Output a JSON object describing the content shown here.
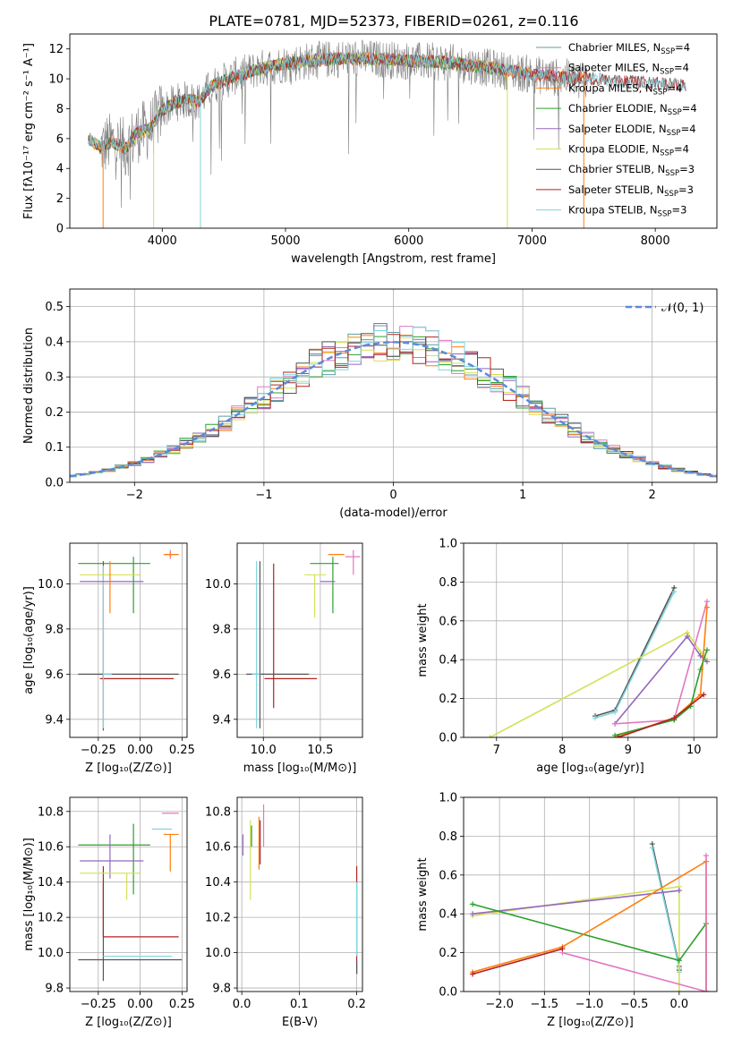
{
  "figure": {
    "title": "PLATE=0781, MJD=52373, FIBERID=0261, z=0.116"
  },
  "chart_data": [
    {
      "panel": "spectrum",
      "type": "line",
      "xlabel": "wavelength [Angstrom, rest frame]",
      "ylabel": "Flux [fλ10⁻¹⁷ erg cm⁻² s⁻¹ A⁻¹]",
      "xlim": [
        3250,
        8500
      ],
      "ylim": [
        0,
        13
      ],
      "xticks": [
        4000,
        5000,
        6000,
        7000,
        8000
      ],
      "yticks": [
        0,
        2,
        4,
        6,
        8,
        10,
        12
      ],
      "grid": false,
      "legend_position": "right",
      "continuum": [
        [
          3400,
          6.0
        ],
        [
          3500,
          5.4
        ],
        [
          3600,
          5.8
        ],
        [
          3700,
          5.3
        ],
        [
          3800,
          6.4
        ],
        [
          3900,
          6.6
        ],
        [
          4000,
          7.9
        ],
        [
          4100,
          8.4
        ],
        [
          4200,
          8.6
        ],
        [
          4300,
          8.5
        ],
        [
          4400,
          9.5
        ],
        [
          4600,
          10.2
        ],
        [
          4800,
          10.7
        ],
        [
          5000,
          11.0
        ],
        [
          5200,
          11.2
        ],
        [
          5500,
          11.4
        ],
        [
          5800,
          11.3
        ],
        [
          6000,
          11.2
        ],
        [
          6300,
          11.1
        ],
        [
          6600,
          10.8
        ],
        [
          6900,
          10.4
        ],
        [
          7200,
          10.1
        ],
        [
          7500,
          10.0
        ],
        [
          7800,
          9.8
        ],
        [
          8000,
          9.7
        ],
        [
          8200,
          9.6
        ]
      ],
      "series": [
        {
          "name": "Chabrier MILES, N",
          "sub": "SSP",
          "suffix": "=4",
          "color": "#5f9ea0"
        },
        {
          "name": "Salpeter MILES, N",
          "sub": "SSP",
          "suffix": "=4",
          "color": "#e377c2"
        },
        {
          "name": "Kroupa MILES, N",
          "sub": "SSP",
          "suffix": "=4",
          "color": "#ff7f0e"
        },
        {
          "name": "Chabrier ELODIE, N",
          "sub": "SSP",
          "suffix": "=4",
          "color": "#2ca02c"
        },
        {
          "name": "Salpeter ELODIE, N",
          "sub": "SSP",
          "suffix": "=4",
          "color": "#9467bd"
        },
        {
          "name": "Kroupa ELODIE, N",
          "sub": "SSP",
          "suffix": "=4",
          "color": "#d4e157"
        },
        {
          "name": "Chabrier STELIB, N",
          "sub": "SSP",
          "suffix": "=3",
          "color": "#555555"
        },
        {
          "name": "Salpeter STELIB, N",
          "sub": "SSP",
          "suffix": "=3",
          "color": "#b22222"
        },
        {
          "name": "Kroupa STELIB, N",
          "sub": "SSP",
          "suffix": "=3",
          "color": "#7fd4e0"
        }
      ]
    },
    {
      "panel": "residuals",
      "type": "line",
      "xlabel": "(data-model)/error",
      "ylabel": "Normed distribution",
      "xlim": [
        -2.5,
        2.5
      ],
      "ylim": [
        0,
        0.55
      ],
      "xticks": [
        -2,
        -1,
        0,
        1,
        2
      ],
      "xtick_labels": [
        "−2",
        "−1",
        "0",
        "1",
        "2"
      ],
      "yticks": [
        0.0,
        0.1,
        0.2,
        0.3,
        0.4,
        0.5
      ],
      "grid": true,
      "legend_position": "top-right",
      "gaussian_label": "𝒩(0, 1)",
      "bin_width": 0.1,
      "hist_colors": [
        "#5f9ea0",
        "#e377c2",
        "#ff7f0e",
        "#2ca02c",
        "#9467bd",
        "#d4e157",
        "#555555",
        "#b22222",
        "#7fd4e0"
      ]
    },
    {
      "panel": "age-vs-Z",
      "type": "scatter",
      "xlabel": "Z [log₁₀(Z/Z⊙)]",
      "ylabel": "age  [log₁₀(age/yr)]",
      "xlim": [
        -0.42,
        0.28
      ],
      "ylim": [
        9.32,
        10.18
      ],
      "xticks": [
        -0.25,
        0.0,
        0.25
      ],
      "xtick_labels": [
        "−0.25",
        "0.00",
        "0.25"
      ],
      "yticks": [
        9.4,
        9.6,
        9.8,
        10.0
      ],
      "grid": true,
      "points": [
        {
          "x": -0.22,
          "y": 9.6,
          "xerr": [
            0.15,
            0.45
          ],
          "yerr": [
            0.25,
            0.5
          ],
          "color": "#555555"
        },
        {
          "x": -0.22,
          "y": 9.58,
          "xerr": [
            0.02,
            0.42
          ],
          "yerr": [
            0.02,
            0.02
          ],
          "color": "#b22222"
        },
        {
          "x": -0.22,
          "y": 9.6,
          "xerr": [
            0.0,
            0.05
          ],
          "yerr": [
            0.24,
            0.48
          ],
          "color": "#7fd4e0"
        },
        {
          "x": -0.04,
          "y": 10.09,
          "xerr": [
            0.33,
            0.1
          ],
          "yerr": [
            0.22,
            0.03
          ],
          "color": "#2ca02c"
        },
        {
          "x": -0.12,
          "y": 10.01,
          "xerr": [
            0.24,
            0.14
          ],
          "yerr": [
            0.0,
            0.0
          ],
          "color": "#9467bd"
        },
        {
          "x": -0.08,
          "y": 10.04,
          "xerr": [
            0.28,
            0.08
          ],
          "yerr": [
            0.0,
            0.0
          ],
          "color": "#d4e157"
        },
        {
          "x": 0.18,
          "y": 10.13,
          "xerr": [
            0.03,
            0.05
          ],
          "yerr": [
            0.02,
            0.02
          ],
          "color": "#e377c2"
        },
        {
          "x": 0.18,
          "y": 10.13,
          "xerr": [
            0.04,
            0.05
          ],
          "yerr": [
            0.01,
            0.01
          ],
          "color": "#ff7f0e"
        },
        {
          "x": -0.18,
          "y": 10.03,
          "xerr": [
            0.0,
            0.0
          ],
          "yerr": [
            0.16,
            0.07
          ],
          "color": "#ff7f0e"
        }
      ]
    },
    {
      "panel": "age-vs-mass",
      "type": "scatter",
      "xlabel": "mass [log₁₀(M/M⊙)]",
      "xlim": [
        9.77,
        10.87
      ],
      "ylim": [
        9.32,
        10.18
      ],
      "xticks": [
        10.0,
        10.5
      ],
      "xtick_labels": [
        "10.0",
        "10.5"
      ],
      "yticks": [
        9.4,
        9.6,
        9.8,
        10.0
      ],
      "grid": true,
      "points": [
        {
          "x": 9.97,
          "y": 9.6,
          "xerr": [
            0.12,
            0.43
          ],
          "yerr": [
            0.24,
            0.5
          ],
          "color": "#555555"
        },
        {
          "x": 10.09,
          "y": 9.58,
          "xerr": [
            0.08,
            0.38
          ],
          "yerr": [
            0.13,
            0.51
          ],
          "color": "#b22222"
        },
        {
          "x": 9.94,
          "y": 9.6,
          "xerr": [
            0.04,
            0.03
          ],
          "yerr": [
            0.24,
            0.5
          ],
          "color": "#7fd4e0"
        },
        {
          "x": 10.61,
          "y": 10.09,
          "xerr": [
            0.2,
            0.05
          ],
          "yerr": [
            0.22,
            0.03
          ],
          "color": "#2ca02c"
        },
        {
          "x": 10.55,
          "y": 10.01,
          "xerr": [
            0.05,
            0.08
          ],
          "yerr": [
            0.0,
            0.0
          ],
          "color": "#9467bd"
        },
        {
          "x": 10.45,
          "y": 10.04,
          "xerr": [
            0.09,
            0.1
          ],
          "yerr": [
            0.19,
            0.0
          ],
          "color": "#d4e157"
        },
        {
          "x": 10.79,
          "y": 10.12,
          "xerr": [
            0.07,
            0.06
          ],
          "yerr": [
            0.08,
            0.03
          ],
          "color": "#e377c2"
        },
        {
          "x": 10.67,
          "y": 10.13,
          "xerr": [
            0.1,
            0.04
          ],
          "yerr": [
            0.0,
            0.0
          ],
          "color": "#ff7f0e"
        }
      ]
    },
    {
      "panel": "weight-vs-age",
      "type": "line",
      "xlabel": "age  [log₁₀(age/yr)]",
      "ylabel": "mass weight",
      "xlim": [
        6.5,
        10.35
      ],
      "ylim": [
        0.0,
        1.0
      ],
      "xticks": [
        7,
        8,
        9,
        10
      ],
      "yticks": [
        0.0,
        0.2,
        0.4,
        0.6,
        0.8,
        1.0
      ],
      "grid": true,
      "series": [
        {
          "color": "#555555",
          "x": [
            8.5,
            8.8,
            9.7
          ],
          "y": [
            0.11,
            0.14,
            0.77
          ]
        },
        {
          "color": "#7fd4e0",
          "x": [
            8.5,
            8.8,
            9.7
          ],
          "y": [
            0.1,
            0.13,
            0.75
          ]
        },
        {
          "color": "#d4e157",
          "x": [
            6.9,
            9.9,
            10.1,
            10.2
          ],
          "y": [
            0.0,
            0.54,
            0.44,
            0.4
          ]
        },
        {
          "color": "#9467bd",
          "x": [
            8.8,
            9.9,
            10.1,
            10.2
          ],
          "y": [
            0.07,
            0.52,
            0.42,
            0.39
          ]
        },
        {
          "color": "#e377c2",
          "x": [
            8.8,
            9.7,
            10.2
          ],
          "y": [
            0.07,
            0.09,
            0.7
          ]
        },
        {
          "color": "#ff7f0e",
          "x": [
            8.8,
            9.7,
            10.1,
            10.2
          ],
          "y": [
            0.0,
            0.1,
            0.22,
            0.67
          ]
        },
        {
          "color": "#2ca02c",
          "x": [
            8.8,
            9.7,
            9.95,
            10.1,
            10.2
          ],
          "y": [
            0.01,
            0.09,
            0.16,
            0.35,
            0.45
          ]
        },
        {
          "color": "#b22222",
          "x": [
            8.85,
            9.7,
            10.15
          ],
          "y": [
            0.0,
            0.1,
            0.22
          ]
        }
      ]
    },
    {
      "panel": "mass-vs-Z",
      "type": "scatter",
      "xlabel": "Z [log₁₀(Z/Z⊙)]",
      "ylabel": "mass [log₁₀(M/M⊙)]",
      "xlim": [
        -0.42,
        0.28
      ],
      "ylim": [
        9.78,
        10.88
      ],
      "xticks": [
        -0.25,
        0.0,
        0.25
      ],
      "xtick_labels": [
        "−0.25",
        "0.00",
        "0.25"
      ],
      "yticks": [
        9.8,
        10.0,
        10.2,
        10.4,
        10.6,
        10.8
      ],
      "grid": true,
      "points": [
        {
          "x": -0.22,
          "y": 9.96,
          "xerr": [
            0.15,
            0.47
          ],
          "yerr": [
            0.12,
            0.43
          ],
          "color": "#555555"
        },
        {
          "x": -0.22,
          "y": 10.09,
          "xerr": [
            0.0,
            0.45
          ],
          "yerr": [
            0.0,
            0.4
          ],
          "color": "#b22222"
        },
        {
          "x": -0.22,
          "y": 9.98,
          "xerr": [
            0.0,
            0.41
          ],
          "yerr": [
            0.0,
            0.0
          ],
          "color": "#7fd4e0"
        },
        {
          "x": -0.04,
          "y": 10.61,
          "xerr": [
            0.33,
            0.1
          ],
          "yerr": [
            0.28,
            0.12
          ],
          "color": "#2ca02c"
        },
        {
          "x": -0.18,
          "y": 10.52,
          "xerr": [
            0.18,
            0.2
          ],
          "yerr": [
            0.1,
            0.15
          ],
          "color": "#9467bd"
        },
        {
          "x": -0.08,
          "y": 10.45,
          "xerr": [
            0.28,
            0.08
          ],
          "yerr": [
            0.15,
            0.0
          ],
          "color": "#d4e157"
        },
        {
          "x": 0.18,
          "y": 10.79,
          "xerr": [
            0.05,
            0.05
          ],
          "yerr": [
            0.0,
            0.0
          ],
          "color": "#e377c2"
        },
        {
          "x": 0.18,
          "y": 10.67,
          "xerr": [
            0.04,
            0.05
          ],
          "yerr": [
            0.21,
            0.0
          ],
          "color": "#ff7f0e"
        },
        {
          "x": 0.07,
          "y": 10.7,
          "xerr": [
            0.0,
            0.12
          ],
          "yerr": [
            0.0,
            0.0
          ],
          "color": "#7fd4e0"
        }
      ]
    },
    {
      "panel": "mass-vs-EBV",
      "type": "scatter",
      "xlabel": "E(B-V)",
      "xlim": [
        -0.008,
        0.21
      ],
      "ylim": [
        9.78,
        10.88
      ],
      "xticks": [
        0.0,
        0.1,
        0.2
      ],
      "xtick_labels": [
        "0.0",
        "0.1",
        "0.2"
      ],
      "yticks": [
        9.8,
        10.0,
        10.2,
        10.4,
        10.6,
        10.8
      ],
      "grid": true,
      "vlines": [
        {
          "x": 0.002,
          "y0": 10.55,
          "y1": 10.67,
          "color": "#9467bd"
        },
        {
          "x": 0.015,
          "y0": 10.3,
          "y1": 10.75,
          "color": "#d4e157"
        },
        {
          "x": 0.017,
          "y0": 10.6,
          "y1": 10.72,
          "color": "#2ca02c"
        },
        {
          "x": 0.03,
          "y0": 10.47,
          "y1": 10.77,
          "color": "#ff7f0e"
        },
        {
          "x": 0.032,
          "y0": 10.5,
          "y1": 10.75,
          "color": "#b22222"
        },
        {
          "x": 0.038,
          "y0": 10.6,
          "y1": 10.84,
          "color": "#e377c2"
        },
        {
          "x": 0.2,
          "y0": 9.88,
          "y1": 10.49,
          "color": "#b22222"
        },
        {
          "x": 0.2,
          "y0": 9.98,
          "y1": 10.4,
          "color": "#7fd4e0"
        },
        {
          "x": 0.2,
          "y0": 9.88,
          "y1": 9.95,
          "color": "#555555"
        }
      ]
    },
    {
      "panel": "weight-vs-Z",
      "type": "line",
      "xlabel": "Z [log₁₀(Z/Z⊙)]",
      "ylabel": "mass weight",
      "xlim": [
        -2.4,
        0.42
      ],
      "ylim": [
        0.0,
        1.0
      ],
      "xticks": [
        -2.0,
        -1.5,
        -1.0,
        -0.5,
        0.0
      ],
      "xtick_labels": [
        "−2.0",
        "−1.5",
        "−1.0",
        "−0.5",
        "0.0"
      ],
      "yticks": [
        0.0,
        0.2,
        0.4,
        0.6,
        0.8,
        1.0
      ],
      "grid": true,
      "series": [
        {
          "color": "#555555",
          "x": [
            -0.3,
            0.0,
            0.0
          ],
          "y": [
            0.76,
            0.13,
            0.11
          ]
        },
        {
          "color": "#7fd4e0",
          "x": [
            -0.3,
            0.0,
            0.0
          ],
          "y": [
            0.74,
            0.12,
            0.1
          ]
        },
        {
          "color": "#d4e157",
          "x": [
            -2.3,
            0.0,
            0.0
          ],
          "y": [
            0.39,
            0.54,
            0.0
          ]
        },
        {
          "color": "#9467bd",
          "x": [
            -2.3,
            0.0
          ],
          "y": [
            0.4,
            0.52
          ]
        },
        {
          "color": "#2ca02c",
          "x": [
            -2.3,
            0.0,
            0.3,
            0.3
          ],
          "y": [
            0.45,
            0.16,
            0.35,
            0.0
          ]
        },
        {
          "color": "#ff7f0e",
          "x": [
            -2.3,
            -1.3,
            0.3,
            0.3
          ],
          "y": [
            0.1,
            0.23,
            0.67,
            0.0
          ]
        },
        {
          "color": "#e377c2",
          "x": [
            -1.3,
            0.3,
            0.3
          ],
          "y": [
            0.2,
            0.0,
            0.7
          ]
        },
        {
          "color": "#b22222",
          "x": [
            -2.3,
            -1.3
          ],
          "y": [
            0.09,
            0.22
          ]
        }
      ]
    }
  ]
}
